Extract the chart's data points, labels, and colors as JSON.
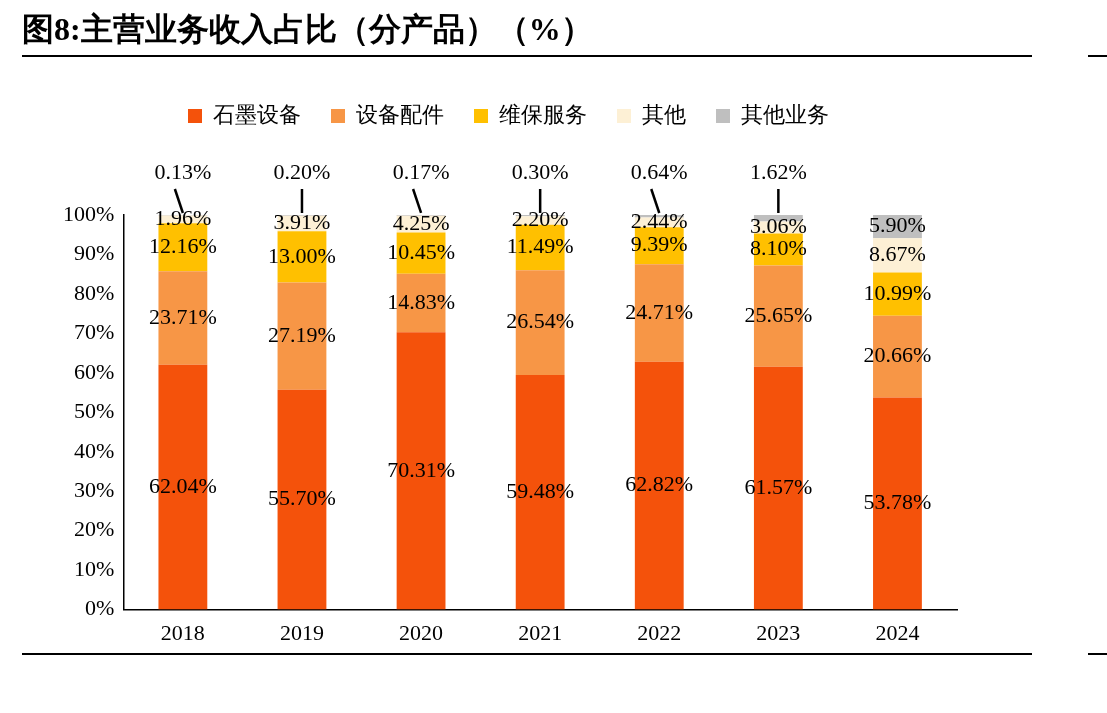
{
  "chart_data": {
    "type": "bar",
    "title": "图8:主营业务收入占比（分产品）（%）",
    "stacked": true,
    "legend": "top",
    "grid": false,
    "categories": [
      "2018",
      "2019",
      "2020",
      "2021",
      "2022",
      "2023",
      "2024"
    ],
    "ylim": [
      0,
      100
    ],
    "yticks": [
      {
        "value": 0,
        "label": "0%"
      },
      {
        "value": 10,
        "label": "10%"
      },
      {
        "value": 20,
        "label": "20%"
      },
      {
        "value": 30,
        "label": "30%"
      },
      {
        "value": 40,
        "label": "40%"
      },
      {
        "value": 50,
        "label": "50%"
      },
      {
        "value": 60,
        "label": "60%"
      },
      {
        "value": 70,
        "label": "70%"
      },
      {
        "value": 80,
        "label": "80%"
      },
      {
        "value": 90,
        "label": "90%"
      },
      {
        "value": 100,
        "label": "100%"
      }
    ],
    "series": [
      {
        "name": "石墨设备",
        "color": "#f4520b",
        "values": [
          62.04,
          55.7,
          70.31,
          59.48,
          62.82,
          61.57,
          53.78
        ],
        "value_labels": [
          "62.04%",
          "55.70%",
          "70.31%",
          "59.48%",
          "62.82%",
          "61.57%",
          "53.78%"
        ]
      },
      {
        "name": "设备配件",
        "color": "#f79646",
        "values": [
          23.71,
          27.19,
          14.83,
          26.54,
          24.71,
          25.65,
          20.66
        ],
        "value_labels": [
          "23.71%",
          "27.19%",
          "14.83%",
          "26.54%",
          "24.71%",
          "25.65%",
          "20.66%"
        ]
      },
      {
        "name": "维保服务",
        "color": "#ffc000",
        "values": [
          12.16,
          13.0,
          10.45,
          11.49,
          9.39,
          8.1,
          10.99
        ],
        "value_labels": [
          "12.16%",
          "13.00%",
          "10.45%",
          "11.49%",
          "9.39%",
          "8.10%",
          "10.99%"
        ]
      },
      {
        "name": "其他",
        "color": "#fdf0d5",
        "values": [
          1.96,
          3.91,
          4.25,
          2.2,
          2.44,
          3.06,
          8.67
        ],
        "value_labels": [
          "1.96%",
          "3.91%",
          "4.25%",
          "2.20%",
          "2.44%",
          "3.06%",
          "8.67%"
        ]
      },
      {
        "name": "其他业务",
        "color": "#bfbfbf",
        "values": [
          0.13,
          0.2,
          0.17,
          0.3,
          0.64,
          1.62,
          5.9
        ],
        "value_labels": [
          "0.13%",
          "0.20%",
          "0.17%",
          "0.30%",
          "0.64%",
          "1.62%",
          "5.90%"
        ]
      }
    ]
  }
}
